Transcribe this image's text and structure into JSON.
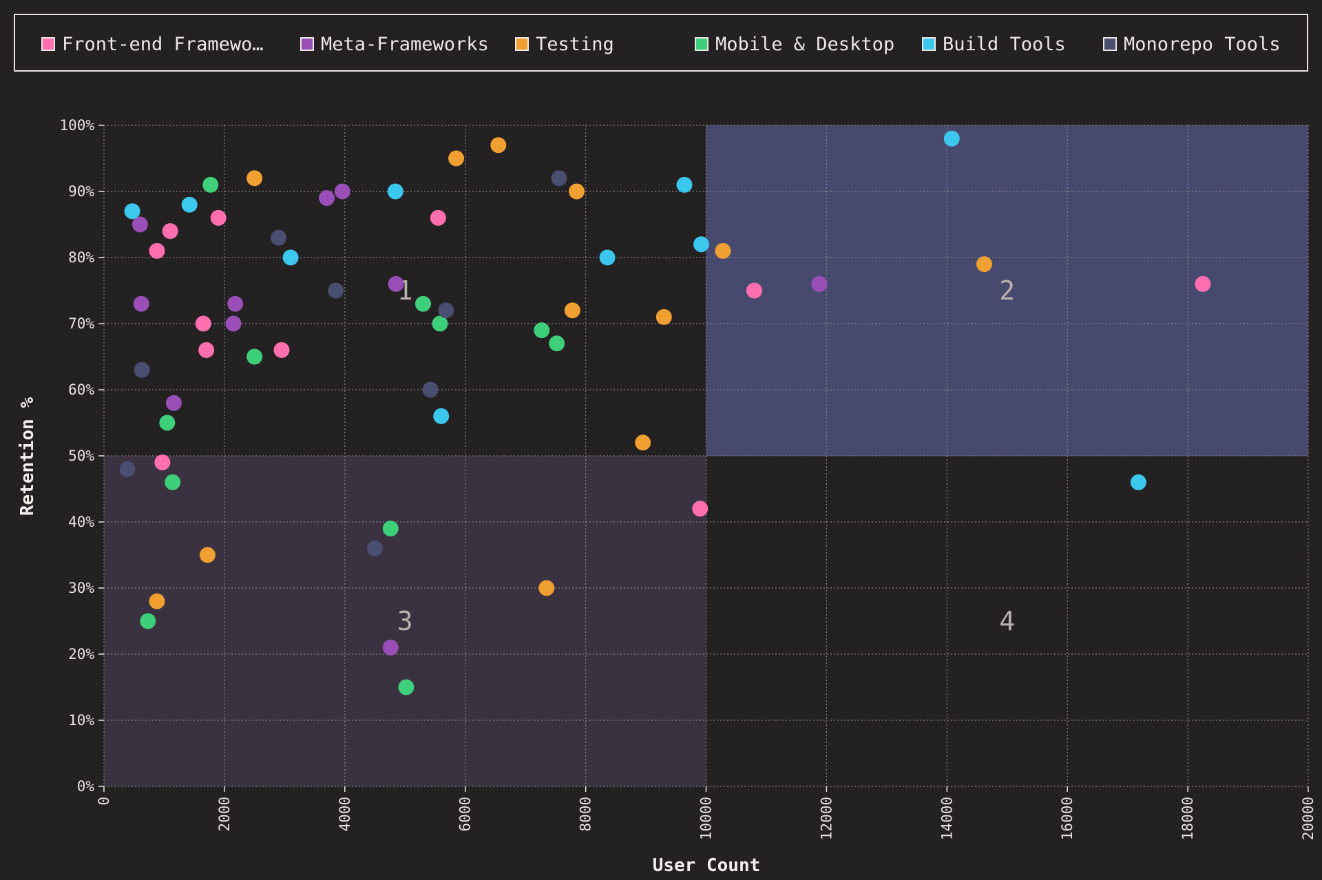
{
  "chart_data": {
    "type": "scatter",
    "xlabel": "User Count",
    "ylabel": "Retention %",
    "xlim": [
      0,
      20000
    ],
    "ylim": [
      0,
      100
    ],
    "x_ticks": [
      "0",
      "2000",
      "4000",
      "6000",
      "8000",
      "10000",
      "12000",
      "14000",
      "16000",
      "18000",
      "20000"
    ],
    "y_ticks": [
      "0%",
      "10%",
      "20%",
      "30%",
      "40%",
      "50%",
      "60%",
      "70%",
      "80%",
      "90%",
      "100%"
    ],
    "grid": true,
    "legend_position": "top",
    "quadrants": [
      {
        "label": "1",
        "x_range": [
          0,
          10000
        ],
        "y_range": [
          50,
          100
        ],
        "color": "#242122"
      },
      {
        "label": "2",
        "x_range": [
          10000,
          20000
        ],
        "y_range": [
          50,
          100
        ],
        "color": "#474a6e"
      },
      {
        "label": "3",
        "x_range": [
          0,
          10000
        ],
        "y_range": [
          0,
          50
        ],
        "color": "#3a3240"
      },
      {
        "label": "4",
        "x_range": [
          10000,
          20000
        ],
        "y_range": [
          0,
          50
        ],
        "color": "#242122"
      }
    ],
    "series": [
      {
        "name": "Front-end Framewo…",
        "color": "#ff6fb0",
        "points": [
          [
            1100,
            84
          ],
          [
            1900,
            86
          ],
          [
            880,
            81
          ],
          [
            1650,
            70
          ],
          [
            1700,
            66
          ],
          [
            2950,
            66
          ],
          [
            970,
            49
          ],
          [
            5550,
            86
          ],
          [
            9900,
            42
          ],
          [
            10800,
            75
          ],
          [
            18250,
            76
          ]
        ]
      },
      {
        "name": "Meta-Frameworks",
        "color": "#9a4fb8",
        "points": [
          [
            600,
            85
          ],
          [
            620,
            73
          ],
          [
            1160,
            58
          ],
          [
            2180,
            73
          ],
          [
            2150,
            70
          ],
          [
            3700,
            89
          ],
          [
            3960,
            90
          ],
          [
            4850,
            76
          ],
          [
            4760,
            21
          ],
          [
            11880,
            76
          ]
        ]
      },
      {
        "name": "Testing",
        "color": "#f0a030",
        "points": [
          [
            2500,
            92
          ],
          [
            1720,
            35
          ],
          [
            880,
            28
          ],
          [
            5850,
            95
          ],
          [
            6550,
            97
          ],
          [
            7850,
            90
          ],
          [
            7780,
            72
          ],
          [
            7350,
            30
          ],
          [
            8950,
            52
          ],
          [
            9300,
            71
          ],
          [
            10280,
            81
          ],
          [
            14620,
            79
          ]
        ]
      },
      {
        "name": "Mobile & Desktop",
        "color": "#3ecf7a",
        "points": [
          [
            1770,
            91
          ],
          [
            1050,
            55
          ],
          [
            1140,
            46
          ],
          [
            730,
            25
          ],
          [
            2500,
            65
          ],
          [
            5300,
            73
          ],
          [
            5580,
            70
          ],
          [
            4760,
            39
          ],
          [
            5020,
            15
          ],
          [
            7270,
            69
          ],
          [
            7520,
            67
          ]
        ]
      },
      {
        "name": "Build Tools",
        "color": "#3cc8ee",
        "points": [
          [
            470,
            87
          ],
          [
            1420,
            88
          ],
          [
            3100,
            80
          ],
          [
            4840,
            90
          ],
          [
            5600,
            56
          ],
          [
            8360,
            80
          ],
          [
            9640,
            91
          ],
          [
            9920,
            82
          ],
          [
            14080,
            98
          ],
          [
            17180,
            46
          ]
        ]
      },
      {
        "name": "Monorepo Tools",
        "color": "#4a4e70",
        "points": [
          [
            390,
            48
          ],
          [
            630,
            63
          ],
          [
            2900,
            83
          ],
          [
            3850,
            75
          ],
          [
            4500,
            36
          ],
          [
            5420,
            60
          ],
          [
            5680,
            72
          ],
          [
            7560,
            92
          ]
        ]
      }
    ]
  }
}
